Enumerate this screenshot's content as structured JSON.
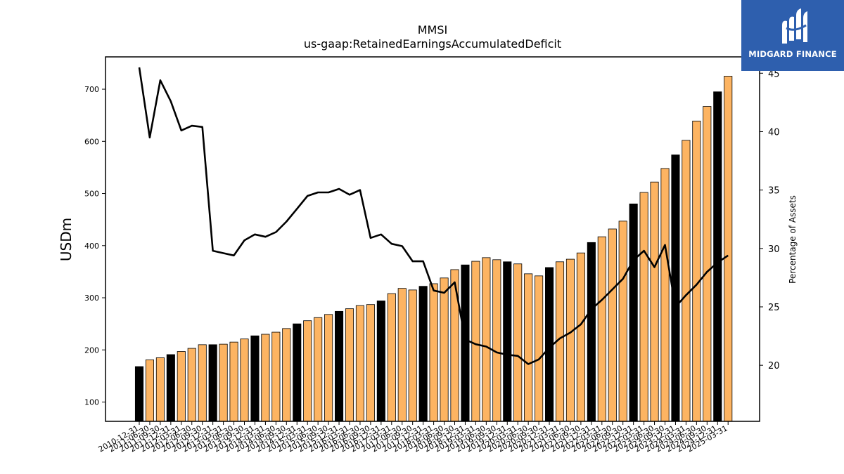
{
  "chart_data": {
    "type": "bar+line",
    "title": "MMSI",
    "subtitle": "us-gaap:RetainedEarningsAccumulatedDeficit",
    "ylabel": "USDm",
    "y2label": "Percentage of Assets",
    "ylim": [
      63,
      762
    ],
    "y2lim": [
      15.2,
      46.4
    ],
    "yticks": [
      100,
      200,
      300,
      400,
      500,
      600,
      700
    ],
    "y2ticks": [
      20,
      25,
      30,
      35,
      40,
      45
    ],
    "categories": [
      "2010-12-31",
      "2011-06-30",
      "2011-09-30",
      "2011-12-31",
      "2012-03-31",
      "2012-06-30",
      "2012-09-30",
      "2012-12-31",
      "2013-03-31",
      "2013-06-30",
      "2013-09-30",
      "2013-12-31",
      "2014-03-31",
      "2014-06-30",
      "2014-09-30",
      "2014-12-31",
      "2015-03-31",
      "2015-06-30",
      "2015-09-30",
      "2015-12-31",
      "2016-03-31",
      "2016-06-30",
      "2016-09-30",
      "2016-12-31",
      "2017-03-31",
      "2017-06-30",
      "2017-09-30",
      "2017-12-31",
      "2018-03-31",
      "2018-06-30",
      "2018-09-30",
      "2018-12-31",
      "2019-03-31",
      "2019-06-30",
      "2019-09-30",
      "2019-12-31",
      "2020-03-31",
      "2020-06-30",
      "2020-09-30",
      "2020-12-31",
      "2021-03-31",
      "2021-06-30",
      "2021-09-30",
      "2021-12-31",
      "2022-03-31",
      "2022-06-30",
      "2022-09-30",
      "2022-12-31",
      "2023-03-31",
      "2023-06-30",
      "2023-09-30",
      "2023-12-31",
      "2024-03-31",
      "2024-06-30",
      "2024-09-30",
      "2024-12-31",
      "2025-03-31"
    ],
    "bar_values": [
      168,
      181,
      185,
      191,
      197,
      203,
      210,
      210,
      211,
      215,
      221,
      227,
      230,
      234,
      241,
      250,
      256,
      262,
      268,
      274,
      279,
      285,
      287,
      294,
      308,
      318,
      315,
      322,
      327,
      338,
      354,
      363,
      370,
      377,
      373,
      369,
      365,
      346,
      342,
      358,
      369,
      374,
      386,
      406,
      417,
      432,
      447,
      480,
      502,
      522,
      548,
      574,
      602,
      639,
      667,
      695,
      725
    ],
    "bar_highlight": [
      true,
      false,
      false,
      true,
      false,
      false,
      false,
      true,
      false,
      false,
      false,
      true,
      false,
      false,
      false,
      true,
      false,
      false,
      false,
      true,
      false,
      false,
      false,
      true,
      false,
      false,
      false,
      true,
      false,
      false,
      false,
      true,
      false,
      false,
      false,
      true,
      false,
      false,
      false,
      true,
      false,
      false,
      false,
      true,
      false,
      false,
      false,
      true,
      false,
      false,
      false,
      true,
      false,
      false,
      false,
      true,
      false
    ],
    "line_values": [
      45.5,
      39.5,
      44.4,
      42.6,
      40.1,
      40.5,
      40.4,
      29.8,
      29.6,
      29.4,
      30.7,
      31.2,
      31.0,
      31.4,
      32.3,
      33.4,
      34.5,
      34.8,
      34.8,
      35.1,
      34.6,
      35.0,
      30.9,
      31.2,
      30.4,
      30.2,
      28.9,
      28.9,
      26.4,
      26.2,
      27.1,
      22.2,
      21.8,
      21.6,
      21.1,
      20.9,
      20.8,
      20.1,
      20.5,
      21.5,
      22.3,
      22.8,
      23.5,
      24.8,
      25.6,
      26.5,
      27.4,
      29.0,
      29.8,
      28.4,
      30.3,
      25.0,
      26.0,
      26.9,
      28.0,
      28.8,
      29.4
    ],
    "colors": {
      "bar": "#fdb462",
      "bar_highlight": "#000000",
      "line": "#000000",
      "axis": "#000000"
    },
    "grid": false,
    "legend": "none"
  },
  "watermark": {
    "logo_text": "MIDGARD FINANCE"
  }
}
